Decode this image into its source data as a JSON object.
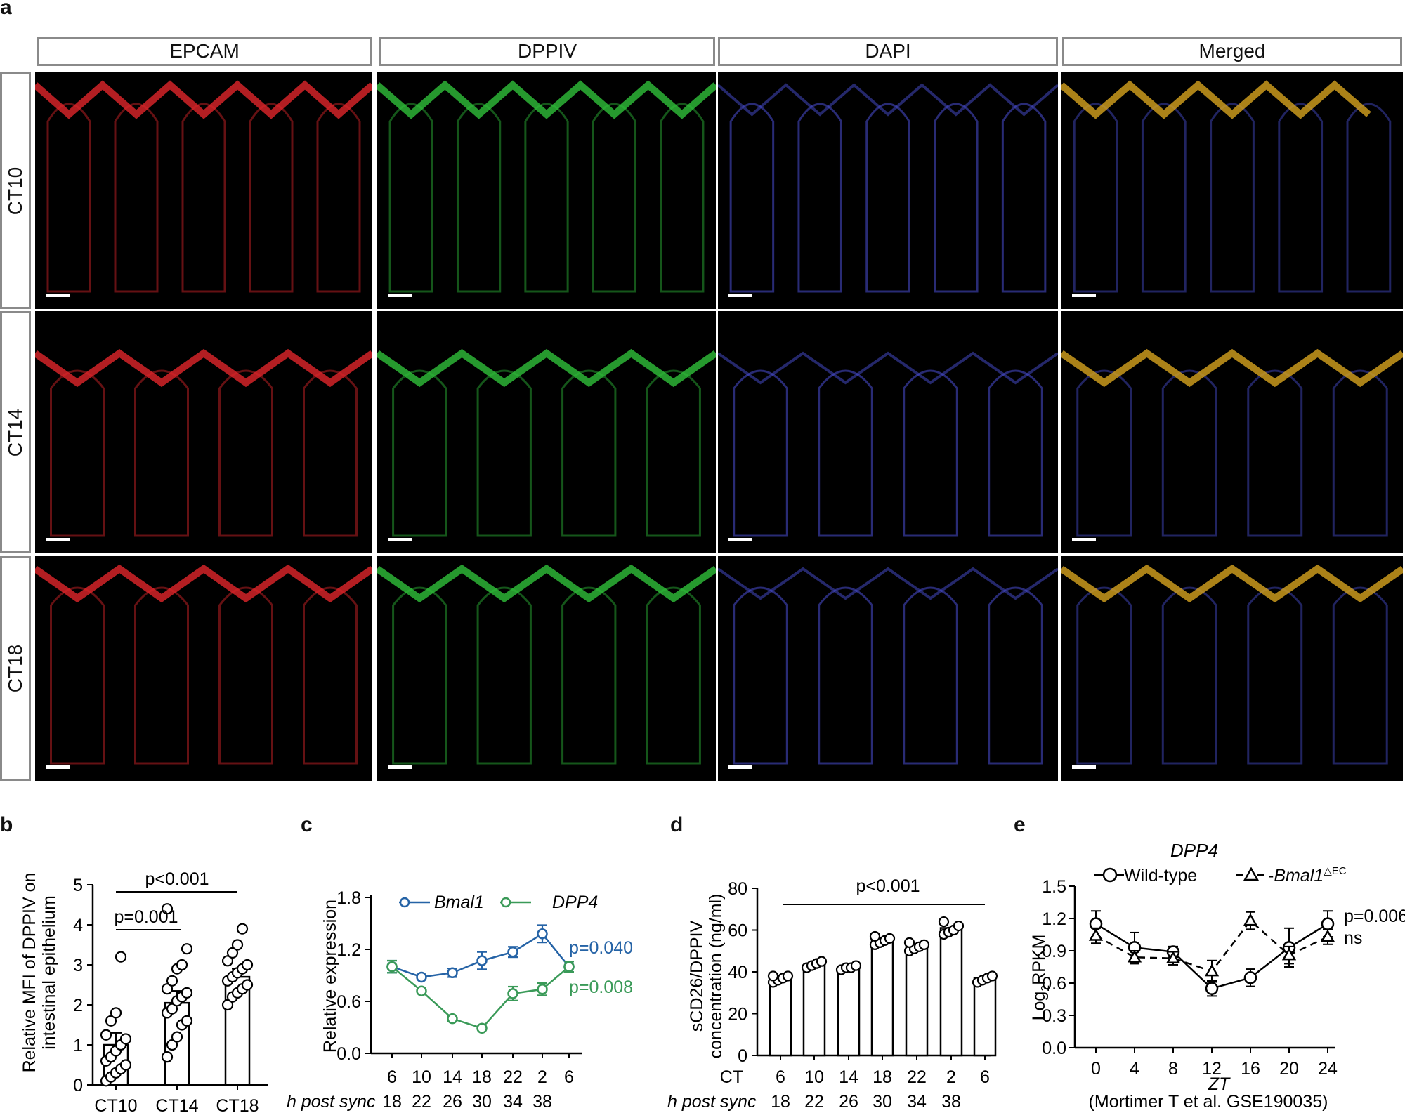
{
  "figure": {
    "panel_letters": {
      "a": "a",
      "b": "b",
      "c": "c",
      "d": "d",
      "e": "e"
    },
    "panel_a": {
      "columns": [
        "EPCAM",
        "DPPIV",
        "DAPI",
        "Merged"
      ],
      "rows": [
        "CT10",
        "CT14",
        "CT18"
      ],
      "channel_colors": {
        "EPCAM": "#e0262a",
        "DPPIV": "#2fbf3a",
        "DAPI": "#4a4fd6",
        "Merged_top": "#d6a21e"
      }
    },
    "panel_b": {
      "ylabel_line1": "Relative MFI of DPPIV on",
      "ylabel_line2": "intestinal epithelium",
      "sig_top": "p<0.001",
      "sig_low": "p=0.001"
    },
    "panel_c": {
      "ylabel": "Relative expression",
      "legend": [
        "Bmal1",
        "DPP4"
      ],
      "p_bmal1": "p=0.040",
      "p_dpp4": "p=0.008",
      "xlabel_row1": "",
      "xlabel_row2": "h post sync",
      "bmal1_color": "#2563a6",
      "dpp4_color": "#3a9a58"
    },
    "panel_d": {
      "ylabel_line1": "sCD26/DPPIV",
      "ylabel_line2": "concentration (ng/ml)",
      "sig": "p<0.001",
      "row1_label": "CT",
      "row2_label": "h post sync"
    },
    "panel_e": {
      "title": "DPP4",
      "legend_wt": "Wild-type",
      "legend_ko_prefix": "-",
      "legend_ko_gene": "Bmal1",
      "legend_ko_sup": "△EC",
      "ylabel_main": "Log",
      "ylabel_sub": "2",
      "ylabel_rest": "RPKM",
      "xlabel": "ZT",
      "caption": "(Mortimer T et al. GSE190035)",
      "p_wt": "p=0.006",
      "p_ko": "ns"
    }
  },
  "chart_data": [
    {
      "panel": "b",
      "type": "bar",
      "categories": [
        "CT10",
        "CT14",
        "CT18"
      ],
      "values": [
        1.0,
        2.05,
        2.7
      ],
      "errors": [
        0.3,
        0.3,
        0.2
      ],
      "points": [
        [
          0.1,
          0.2,
          0.3,
          0.4,
          0.5,
          0.6,
          0.7,
          0.85,
          1.0,
          1.15,
          1.25,
          1.6,
          1.8,
          3.2
        ],
        [
          0.7,
          1.0,
          1.2,
          1.5,
          1.6,
          1.8,
          1.9,
          2.1,
          2.2,
          2.3,
          2.4,
          2.6,
          2.9,
          3.0,
          3.4,
          4.4
        ],
        [
          2.0,
          2.2,
          2.3,
          2.4,
          2.5,
          2.6,
          2.7,
          2.8,
          2.9,
          3.0,
          3.1,
          3.3,
          3.5,
          3.9
        ]
      ],
      "ylim": [
        0,
        5
      ],
      "yticks": [
        0,
        1,
        2,
        3,
        4,
        5
      ],
      "ylabel": "Relative MFI of DPPIV on intestinal epithelium"
    },
    {
      "panel": "c",
      "type": "line",
      "x_ct": [
        "6",
        "10",
        "14",
        "18",
        "22",
        "2",
        "6"
      ],
      "x_sync": [
        "18",
        "22",
        "26",
        "30",
        "34",
        "38"
      ],
      "series": [
        {
          "name": "Bmal1",
          "values": [
            1.0,
            0.88,
            0.93,
            1.07,
            1.17,
            1.38,
            1.0
          ],
          "errors": [
            0.07,
            0.03,
            0.05,
            0.1,
            0.06,
            0.1,
            0.06
          ]
        },
        {
          "name": "DPP4",
          "values": [
            1.0,
            0.72,
            0.4,
            0.29,
            0.69,
            0.74,
            1.0
          ],
          "errors": [
            0.07,
            0.03,
            0.03,
            0.02,
            0.08,
            0.07,
            0.06
          ]
        }
      ],
      "ylim": [
        0,
        1.8
      ],
      "yticks": [
        "0.0",
        "0.6",
        "1.2",
        "1.8"
      ],
      "ylabel": "Relative expression"
    },
    {
      "panel": "d",
      "type": "bar",
      "x_ct": [
        "6",
        "10",
        "14",
        "18",
        "22",
        "2",
        "6"
      ],
      "x_sync": [
        "18",
        "22",
        "26",
        "30",
        "34",
        "38"
      ],
      "values": [
        37,
        43,
        42,
        55,
        52,
        61,
        37
      ],
      "points": [
        [
          35,
          36,
          37,
          38,
          38
        ],
        [
          42,
          43,
          44,
          45
        ],
        [
          41,
          42,
          42,
          43
        ],
        [
          53,
          54,
          55,
          56,
          57
        ],
        [
          50,
          51,
          52,
          53,
          54
        ],
        [
          58,
          59,
          60,
          62,
          64
        ],
        [
          35,
          36,
          37,
          38
        ]
      ],
      "ylim": [
        0,
        80
      ],
      "yticks": [
        0,
        20,
        40,
        60,
        80
      ],
      "ylabel": "sCD26/DPPIV concentration (ng/ml)"
    },
    {
      "panel": "e",
      "type": "line",
      "x": [
        0,
        4,
        8,
        12,
        16,
        20,
        24
      ],
      "series": [
        {
          "name": "Wild-type",
          "values": [
            1.15,
            0.93,
            0.89,
            0.55,
            0.65,
            0.93,
            1.15
          ],
          "errors": [
            0.12,
            0.14,
            0.05,
            0.07,
            0.08,
            0.18,
            0.12
          ]
        },
        {
          "name": "Bmal1 △EC",
          "values": [
            1.04,
            0.84,
            0.83,
            0.71,
            1.18,
            0.86,
            1.03
          ],
          "errors": [
            0.07,
            0.06,
            0.06,
            0.1,
            0.08,
            0.08,
            0.07
          ]
        }
      ],
      "xlim": [
        0,
        24
      ],
      "ylim": [
        0,
        1.5
      ],
      "yticks": [
        "0.0",
        "0.3",
        "0.6",
        "0.9",
        "1.2",
        "1.5"
      ],
      "xlabel": "ZT",
      "title": "DPP4"
    }
  ]
}
